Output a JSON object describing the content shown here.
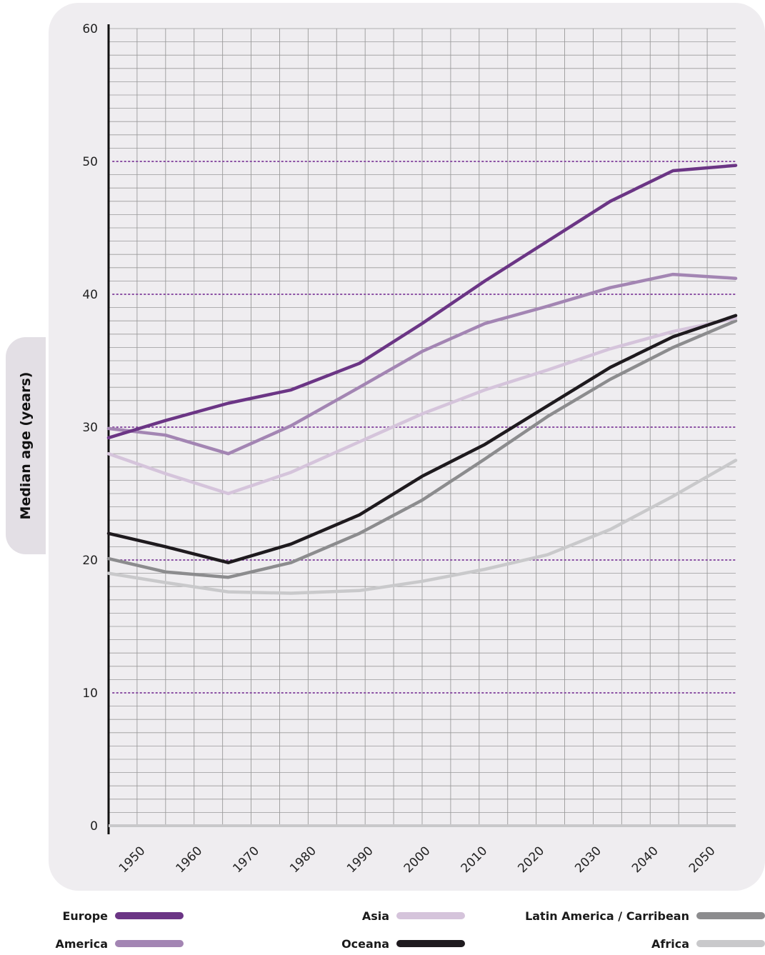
{
  "chart_data": {
    "type": "line",
    "title": "",
    "xlabel": "",
    "ylabel": "Median age (years)",
    "xlim": [
      1945,
      2055
    ],
    "ylim": [
      0,
      60
    ],
    "x_ticks": [
      "1950",
      "1960",
      "1970",
      "1980",
      "1990",
      "2000",
      "2010",
      "2020",
      "2030",
      "2040",
      "2050"
    ],
    "y_ticks": [
      "0",
      "10",
      "20",
      "30",
      "40",
      "50",
      "60"
    ],
    "grid": true,
    "legend_position": "bottom",
    "x": [
      1945,
      1955,
      1966,
      1977,
      1989,
      2000,
      2011,
      2022,
      2033,
      2044,
      2055
    ],
    "series": [
      {
        "name": "Europe",
        "color": "#6b3585",
        "values": [
          29.2,
          30.5,
          31.8,
          32.8,
          34.8,
          37.8,
          41.0,
          44.0,
          47.0,
          49.3,
          49.7
        ]
      },
      {
        "name": "America",
        "color": "#a385b3",
        "values": [
          29.9,
          29.4,
          28.0,
          30.1,
          33.0,
          35.7,
          37.8,
          39.1,
          40.5,
          41.5,
          41.2
        ]
      },
      {
        "name": "Asia",
        "color": "#d5c4db",
        "values": [
          28.0,
          26.5,
          25.0,
          26.6,
          28.9,
          31.0,
          32.8,
          34.3,
          35.9,
          37.2,
          38.2
        ]
      },
      {
        "name": "Oceana",
        "color": "#1e1a1e",
        "values": [
          22.0,
          21.0,
          19.8,
          21.2,
          23.4,
          26.3,
          28.7,
          31.6,
          34.5,
          36.8,
          38.4
        ]
      },
      {
        "name": "Latin America / Carribean",
        "color": "#8c8c8e",
        "values": [
          20.1,
          19.1,
          18.7,
          19.8,
          22.0,
          24.5,
          27.6,
          30.8,
          33.6,
          36.0,
          38.0
        ]
      },
      {
        "name": "Africa",
        "color": "#c9c9cb",
        "values": [
          19.0,
          18.3,
          17.6,
          17.5,
          17.7,
          18.4,
          19.3,
          20.4,
          22.3,
          24.8,
          27.5
        ]
      }
    ]
  },
  "legend": [
    {
      "label": "Europe",
      "color": "#6b3585"
    },
    {
      "label": "America",
      "color": "#a385b3"
    },
    {
      "label": "Asia",
      "color": "#d5c4db"
    },
    {
      "label": "Oceana",
      "color": "#1e1a1e"
    },
    {
      "label": "Latin America / Carribean",
      "color": "#8c8c8e"
    },
    {
      "label": "Africa",
      "color": "#c9c9cb"
    }
  ]
}
